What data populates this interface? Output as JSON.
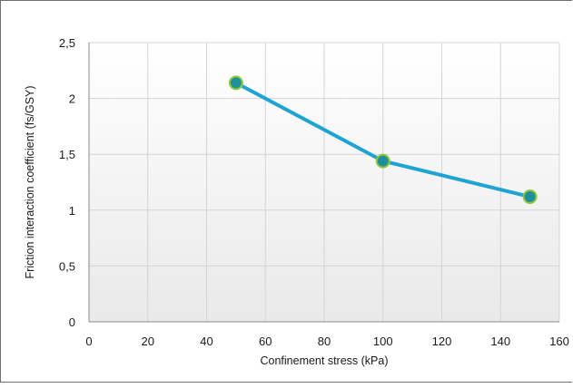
{
  "chart_data": {
    "type": "line",
    "xlabel": "Confinement stress (kPa)",
    "ylabel": "Friction interaction coefficient (fs/GSY)",
    "xlim": [
      0,
      160
    ],
    "ylim": [
      0,
      2.5
    ],
    "x_ticks": [
      "0",
      "20",
      "40",
      "60",
      "80",
      "100",
      "120",
      "140",
      "160"
    ],
    "y_ticks": [
      "0",
      "0,5",
      "1",
      "1,5",
      "2",
      "2,5"
    ],
    "grid": true,
    "legend": "none",
    "series": [
      {
        "x": [
          50,
          100,
          150
        ],
        "y": [
          2.14,
          1.44,
          1.12
        ],
        "line_color": "#1fa3d3",
        "marker_fill": "#1f8f9a",
        "marker_edge": "#8fc83a"
      }
    ]
  }
}
